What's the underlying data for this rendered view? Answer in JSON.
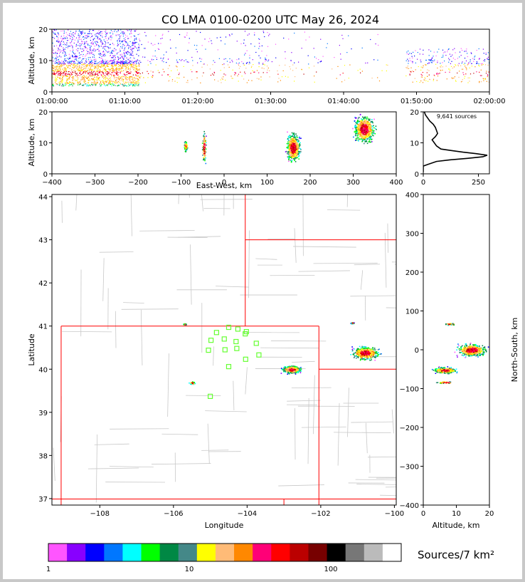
{
  "title": "CO LMA 0100-0200 UTC May 26, 2024",
  "colors": {
    "frame": "#c8c8c8",
    "state_border": "#ff0000",
    "county_border": "#c8c8c8",
    "station": "#66ff33",
    "profile_line": "#000000"
  },
  "chart_data": [
    {
      "id": "time-height",
      "type": "scatter",
      "xlabel": "",
      "ylabel": "Altitude, km",
      "x_ticks": [
        "01:00:00",
        "01:10:00",
        "01:20:00",
        "01:30:00",
        "01:40:00",
        "01:50:00",
        "02:00:00"
      ],
      "ylim": [
        0,
        20
      ],
      "y_ticks": [
        0,
        10,
        20
      ],
      "xlim_minutes": [
        0,
        60
      ],
      "activity_bursts": [
        {
          "t_start": 0,
          "t_end": 12,
          "alt_low": 2,
          "alt_high": 20,
          "density": "high"
        },
        {
          "t_start": 12,
          "t_end": 30,
          "alt_low": 3,
          "alt_high": 20,
          "density": "medium"
        },
        {
          "t_start": 30,
          "t_end": 46,
          "alt_low": 3,
          "alt_high": 20,
          "density": "low"
        },
        {
          "t_start": 48.5,
          "t_end": 60,
          "alt_low": 3,
          "alt_high": 14,
          "density": "medium"
        }
      ]
    },
    {
      "id": "east-west-altitude",
      "type": "scatter",
      "xlabel": "East-West, km",
      "ylabel": "Altitude, km",
      "xlim": [
        -400,
        400
      ],
      "x_ticks": [
        -400,
        -300,
        -200,
        -100,
        0,
        100,
        200,
        300,
        400
      ],
      "ylim": [
        0,
        20
      ],
      "y_ticks": [
        0,
        10,
        20
      ],
      "clusters": [
        {
          "x": -90,
          "spread_x": 5,
          "alt_low": 7,
          "alt_high": 11
        },
        {
          "x": -47,
          "spread_x": 6,
          "alt_low": 2,
          "alt_high": 15
        },
        {
          "x": 160,
          "spread_x": 20,
          "alt_low": 3,
          "alt_high": 14
        },
        {
          "x": 325,
          "spread_x": 30,
          "alt_low": 9,
          "alt_high": 20
        }
      ]
    },
    {
      "id": "altitude-histogram",
      "type": "line",
      "annotation": "9,641 sources",
      "xlim": [
        0,
        300
      ],
      "x_ticks": [
        0,
        250
      ],
      "ylim": [
        0,
        20
      ],
      "y_ticks": [
        0,
        10,
        20
      ],
      "profile": [
        {
          "alt": 0.5,
          "count": 0
        },
        {
          "alt": 2.5,
          "count": 0
        },
        {
          "alt": 3,
          "count": 20
        },
        {
          "alt": 4,
          "count": 60
        },
        {
          "alt": 4.5,
          "count": 120
        },
        {
          "alt": 5,
          "count": 200
        },
        {
          "alt": 5.5,
          "count": 270
        },
        {
          "alt": 6,
          "count": 290
        },
        {
          "alt": 6.5,
          "count": 240
        },
        {
          "alt": 7,
          "count": 180
        },
        {
          "alt": 7.5,
          "count": 130
        },
        {
          "alt": 8,
          "count": 80
        },
        {
          "alt": 9,
          "count": 60
        },
        {
          "alt": 10,
          "count": 50
        },
        {
          "alt": 11,
          "count": 40
        },
        {
          "alt": 12,
          "count": 55
        },
        {
          "alt": 13,
          "count": 65
        },
        {
          "alt": 14,
          "count": 60
        },
        {
          "alt": 15,
          "count": 55
        },
        {
          "alt": 16,
          "count": 45
        },
        {
          "alt": 17,
          "count": 30
        },
        {
          "alt": 18,
          "count": 20
        },
        {
          "alt": 19,
          "count": 10
        },
        {
          "alt": 20,
          "count": 5
        }
      ]
    },
    {
      "id": "plan-view",
      "type": "scatter",
      "xlabel": "Longitude",
      "ylabel": "Latitude",
      "xlim": [
        -109.3,
        -99.95
      ],
      "x_ticks": [
        -108,
        -106,
        -104,
        -102,
        -100
      ],
      "ylim": [
        36.85,
        44.05
      ],
      "y_ticks": [
        37,
        38,
        39,
        40,
        41,
        42,
        43,
        44
      ],
      "clusters": [
        {
          "lon": -105.5,
          "lat": 39.69,
          "rx": 0.1,
          "ry": 0.04
        },
        {
          "lon": -105.7,
          "lat": 41.05,
          "rx": 0.05,
          "ry": 0.02
        },
        {
          "lon": -102.8,
          "lat": 40.0,
          "rx": 0.32,
          "ry": 0.11
        },
        {
          "lon": -100.8,
          "lat": 40.38,
          "rx": 0.45,
          "ry": 0.19
        },
        {
          "lon": -101.15,
          "lat": 41.08,
          "rx": 0.05,
          "ry": 0.02
        }
      ],
      "stations": [
        {
          "lon": -104.5,
          "lat": 40.97
        },
        {
          "lon": -104.25,
          "lat": 40.93
        },
        {
          "lon": -104.02,
          "lat": 40.87
        },
        {
          "lon": -104.83,
          "lat": 40.85
        },
        {
          "lon": -104.05,
          "lat": 40.82
        },
        {
          "lon": -104.62,
          "lat": 40.7
        },
        {
          "lon": -104.98,
          "lat": 40.67
        },
        {
          "lon": -104.3,
          "lat": 40.64
        },
        {
          "lon": -103.75,
          "lat": 40.6
        },
        {
          "lon": -104.28,
          "lat": 40.48
        },
        {
          "lon": -104.6,
          "lat": 40.45
        },
        {
          "lon": -105.05,
          "lat": 40.44
        },
        {
          "lon": -103.68,
          "lat": 40.33
        },
        {
          "lon": -104.04,
          "lat": 40.23
        },
        {
          "lon": -104.5,
          "lat": 40.06
        },
        {
          "lon": -105.0,
          "lat": 39.37
        }
      ]
    },
    {
      "id": "altitude-north-south",
      "type": "scatter",
      "xlabel": "Altitude, km",
      "ylabel": "North-South, km",
      "xlim": [
        0,
        20
      ],
      "x_ticks": [
        0,
        10,
        20
      ],
      "ylim": [
        -400,
        400
      ],
      "y_ticks": [
        -400,
        -300,
        -200,
        -100,
        0,
        100,
        200,
        300,
        400
      ],
      "clusters": [
        {
          "alt_low": 9,
          "alt_high": 20,
          "ns": 0,
          "spread_ns": 20
        },
        {
          "alt_low": 2,
          "alt_high": 11,
          "ns": -52,
          "spread_ns": 10
        },
        {
          "alt_low": 3,
          "alt_high": 10,
          "ns": -83,
          "spread_ns": 3
        },
        {
          "alt_low": 6,
          "alt_high": 10,
          "ns": 67,
          "spread_ns": 3
        }
      ]
    }
  ],
  "colorbar": {
    "title": "Sources/7 km²",
    "tick_labels": [
      "1",
      "10",
      "100"
    ],
    "scale": "log",
    "colors": [
      "#ff55ff",
      "#8800ff",
      "#0000ff",
      "#0077ff",
      "#00ffff",
      "#00ff00",
      "#008844",
      "#448888",
      "#ffff00",
      "#ffbb77",
      "#ff8800",
      "#ff0077",
      "#ff0000",
      "#bb0000",
      "#770000",
      "#000000",
      "#777777",
      "#bbbbbb",
      "#ffffff"
    ]
  }
}
